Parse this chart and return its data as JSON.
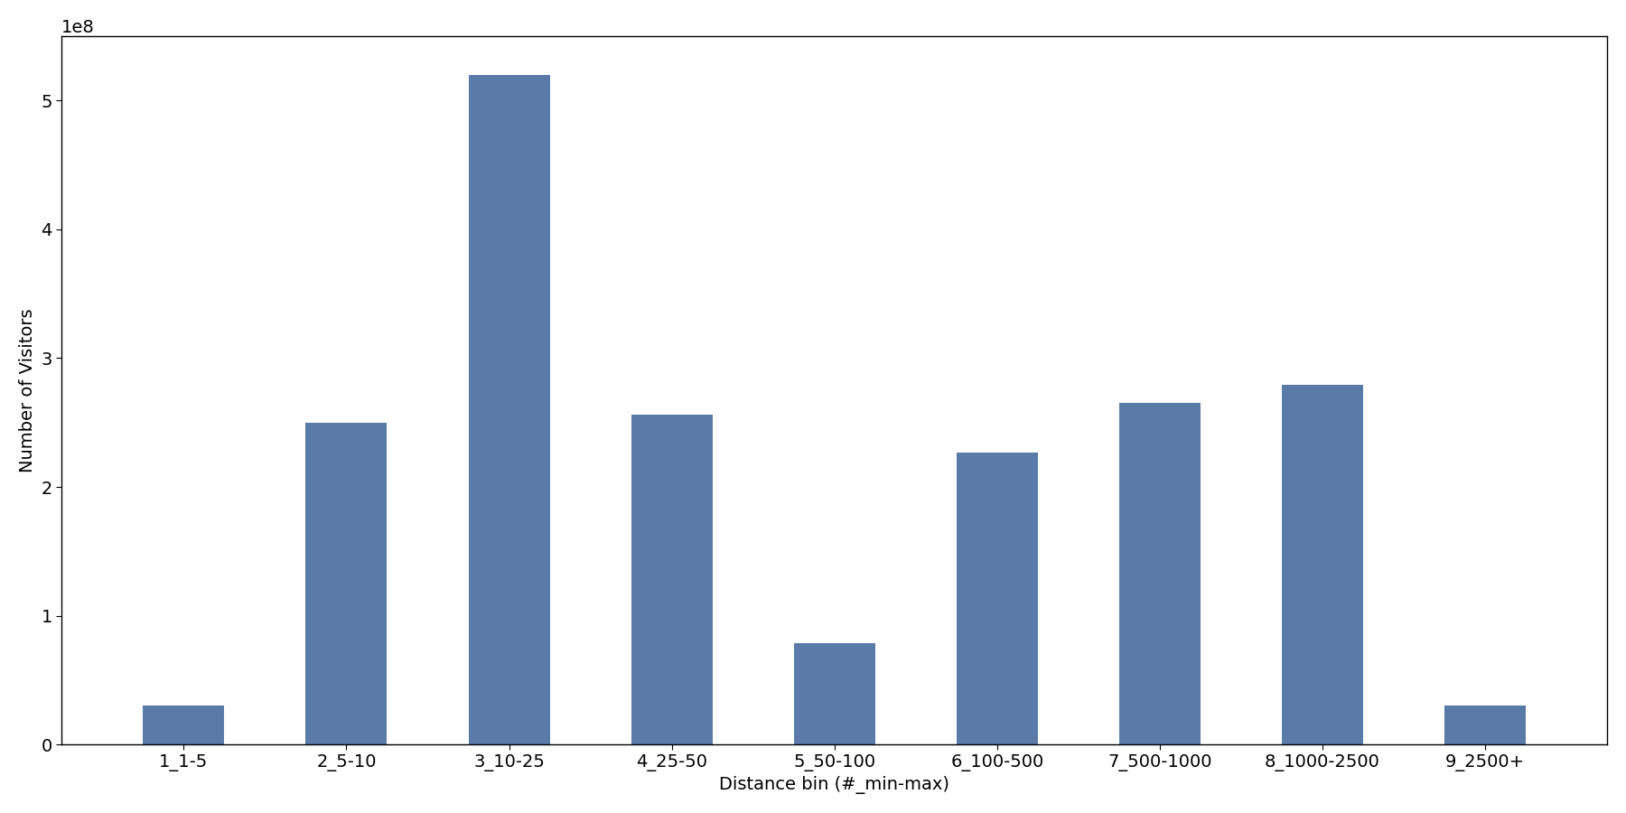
{
  "categories": [
    "1_1-5",
    "2_5-10",
    "3_10-25",
    "4_25-50",
    "5_50-100",
    "6_100-500",
    "7_500-1000",
    "8_1000-2500",
    "9_2500+"
  ],
  "values": [
    30000000.0,
    250000000.0,
    520000000.0,
    256000000.0,
    79000000.0,
    227000000.0,
    265000000.0,
    279000000.0,
    30000000.0
  ],
  "bar_color": "#5a7aa8",
  "xlabel": "Distance bin (#_min-max)",
  "ylabel": "Number of Visitors",
  "ylim": [
    0,
    550000000.0
  ],
  "figsize": [
    18.0,
    9.0
  ],
  "dpi": 100,
  "bar_width": 0.5,
  "tick_fontsize": 14,
  "label_fontsize": 14
}
